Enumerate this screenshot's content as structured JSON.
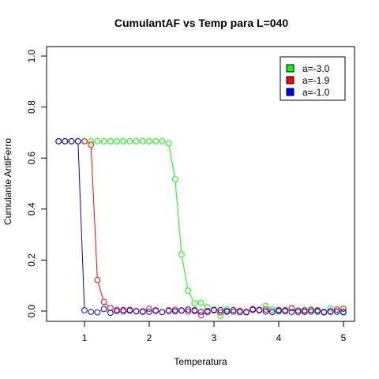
{
  "chart_data": {
    "type": "line",
    "title": "CumulantAF vs Temp para L=040",
    "xlabel": "Temperatura",
    "ylabel": "Cumulante AntiFerro",
    "xlim": [
      0.6,
      5.0
    ],
    "ylim": [
      -0.02,
      1.0
    ],
    "x_ticks": [
      "1",
      "2",
      "3",
      "4",
      "5"
    ],
    "y_ticks": [
      "0.0",
      "0.2",
      "0.4",
      "0.6",
      "0.8",
      "1.0"
    ],
    "legend_position": "top-right",
    "colors": {
      "green": "#00ff00",
      "red": "#ff0000",
      "blue": "#0000ff"
    },
    "x": [
      0.6,
      0.7,
      0.8,
      0.9,
      1.0,
      1.1,
      1.2,
      1.3,
      1.4,
      1.5,
      1.6,
      1.7,
      1.8,
      1.9,
      2.0,
      2.1,
      2.2,
      2.3,
      2.4,
      2.5,
      2.6,
      2.7,
      2.8,
      2.9,
      3.0,
      3.1,
      3.2,
      3.3,
      3.4,
      3.5,
      3.6,
      3.7,
      3.8,
      3.9,
      4.0,
      4.1,
      4.2,
      4.3,
      4.4,
      4.5,
      4.6,
      4.7,
      4.8,
      4.9,
      5.0
    ],
    "series": [
      {
        "name": "a=-3.0",
        "color": "#00ff00",
        "values": [
          0.666,
          0.666,
          0.666,
          0.666,
          0.666,
          0.666,
          0.666,
          0.666,
          0.666,
          0.666,
          0.666,
          0.666,
          0.666,
          0.666,
          0.666,
          0.666,
          0.666,
          0.658,
          0.517,
          0.222,
          0.08,
          0.03,
          0.033,
          0.015,
          0.005,
          -0.018,
          0.006,
          0.005,
          0.001,
          -0.003,
          0.006,
          0.005,
          0.02,
          0.006,
          -0.002,
          0.004,
          0.012,
          -0.004,
          0.005,
          0.006,
          -0.004,
          -0.003,
          0.01,
          -0.003,
          -0.001
        ]
      },
      {
        "name": "a=-1.9",
        "color": "#ff0000",
        "values": [
          0.666,
          0.666,
          0.666,
          0.666,
          0.666,
          0.653,
          0.122,
          0.036,
          0.012,
          0.005,
          -0.001,
          0.005,
          -0.001,
          -0.003,
          0.009,
          0.001,
          -0.004,
          0.003,
          0.005,
          0.003,
          -0.002,
          0.004,
          -0.016,
          0.001,
          0.003,
          -0.005,
          -0.003,
          0.004,
          0.001,
          -0.003,
          0.008,
          0.005,
          0.006,
          -0.004,
          0.005,
          -0.001,
          0.011,
          -0.004,
          0.002,
          0.004,
          0.0,
          -0.003,
          -0.003,
          0.006,
          0.009
        ]
      },
      {
        "name": "a=-1.0",
        "color": "#0000ff",
        "values": [
          0.666,
          0.666,
          0.666,
          0.666,
          0.003,
          -0.003,
          -0.005,
          0.008,
          -0.007,
          0.0,
          0.004,
          0.002,
          0.0,
          -0.001,
          -0.003,
          0.003,
          -0.004,
          0.001,
          -0.001,
          0.002,
          0.006,
          0.001,
          -0.003,
          -0.003,
          0.005,
          0.004,
          0.0,
          -0.002,
          -0.004,
          -0.005,
          0.005,
          0.003,
          -0.002,
          -0.003,
          0.001,
          0.003,
          -0.003,
          0.002,
          -0.003,
          -0.002,
          0.003,
          -0.005,
          -0.001,
          -0.002,
          -0.005
        ]
      }
    ]
  }
}
